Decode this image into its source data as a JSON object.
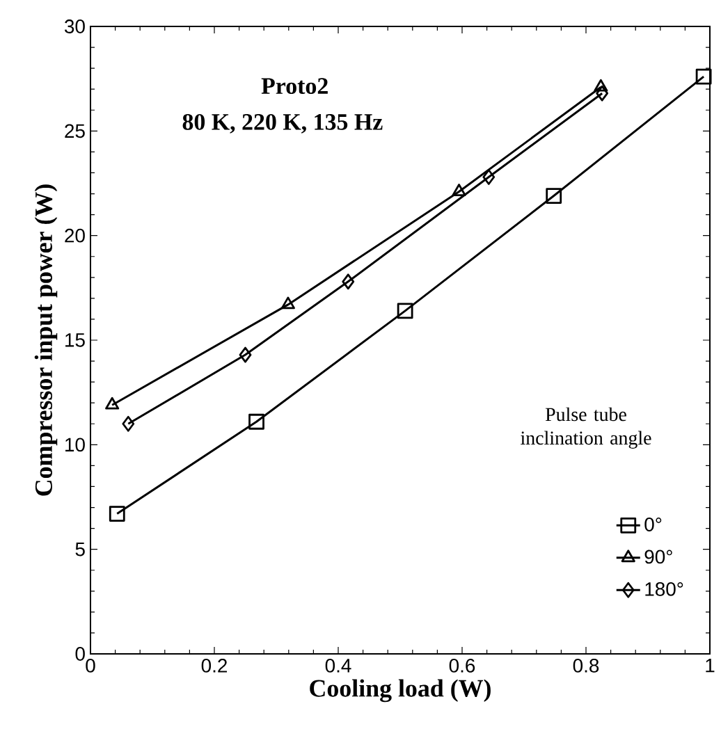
{
  "chart_data": {
    "type": "line",
    "xlabel": "Cooling load (W)",
    "ylabel": "Compressor input power (W)",
    "annotations": [
      "Proto2",
      "80 K, 220 K, 135 Hz"
    ],
    "legend_title": "Pulse tube inclination angle",
    "xlim": [
      0,
      1
    ],
    "xticks": [
      0,
      0.2,
      0.4,
      0.6,
      0.8,
      1
    ],
    "ylim": [
      0,
      30
    ],
    "yticks": [
      0,
      5,
      10,
      15,
      20,
      25,
      30
    ],
    "legend": "bottom right",
    "line_style": "solid",
    "series": [
      {
        "name": "0°",
        "color": "#000000",
        "marker": "square",
        "x": [
          0.043,
          0.268,
          0.508,
          0.748,
          0.99
        ],
        "values": [
          6.7,
          11.1,
          16.4,
          21.9,
          27.6
        ]
      },
      {
        "name": "90°",
        "color": "#000000",
        "marker": "triangle",
        "x": [
          0.035,
          0.319,
          0.595,
          0.824
        ],
        "values": [
          11.9,
          16.7,
          22.1,
          27.1
        ]
      },
      {
        "name": "180°",
        "color": "#000000",
        "marker": "diamond",
        "x": [
          0.061,
          0.25,
          0.416,
          0.643,
          0.826
        ],
        "values": [
          11.0,
          14.3,
          17.8,
          22.8,
          26.8
        ]
      }
    ]
  }
}
